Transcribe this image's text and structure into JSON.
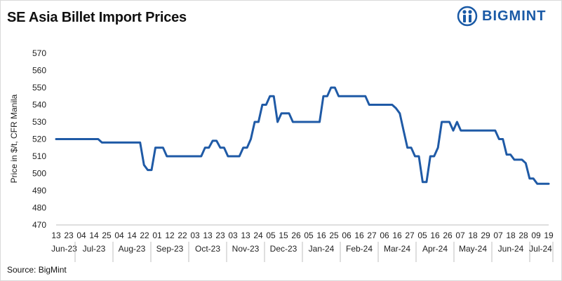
{
  "chart_data": {
    "type": "line",
    "title": "SE Asia Billet Import Prices",
    "ylabel": "Price in $/t, CFR Manila",
    "xlabel": "",
    "ylim": [
      470,
      570
    ],
    "yticks": [
      470,
      480,
      490,
      500,
      510,
      520,
      530,
      540,
      550,
      560,
      570
    ],
    "grid": false,
    "legend": "none",
    "line_color": "#1f5aa6",
    "day_labels": [
      "13",
      "23",
      "04",
      "14",
      "25",
      "04",
      "14",
      "22",
      "01",
      "12",
      "22",
      "03",
      "13",
      "23",
      "03",
      "13",
      "24",
      "05",
      "15",
      "26",
      "05",
      "16",
      "25",
      "06",
      "16",
      "27",
      "06",
      "16",
      "27",
      "05",
      "16",
      "26",
      "07",
      "18",
      "29",
      "07",
      "18",
      "28",
      "09",
      "19"
    ],
    "months": [
      {
        "label": "Jun-23",
        "from": 0,
        "to": 2
      },
      {
        "label": "Jul-23",
        "from": 2,
        "to": 5
      },
      {
        "label": "Aug-23",
        "from": 5,
        "to": 8
      },
      {
        "label": "Sep-23",
        "from": 8,
        "to": 11
      },
      {
        "label": "Oct-23",
        "from": 11,
        "to": 14
      },
      {
        "label": "Nov-23",
        "from": 14,
        "to": 17
      },
      {
        "label": "Dec-23",
        "from": 17,
        "to": 20
      },
      {
        "label": "Jan-24",
        "from": 20,
        "to": 23
      },
      {
        "label": "Feb-24",
        "from": 23,
        "to": 26
      },
      {
        "label": "Mar-24",
        "from": 26,
        "to": 29
      },
      {
        "label": "Apr-24",
        "from": 29,
        "to": 32
      },
      {
        "label": "May-24",
        "from": 32,
        "to": 35
      },
      {
        "label": "Jun-24",
        "from": 35,
        "to": 38
      },
      {
        "label": "Jul-24",
        "from": 38,
        "to": 40
      }
    ],
    "series": [
      {
        "values": [
          520,
          520,
          520,
          520,
          520,
          520,
          520,
          520,
          520,
          520,
          520,
          520,
          518,
          518,
          518,
          518,
          518,
          518,
          518,
          518,
          518,
          518,
          518,
          505,
          502,
          502,
          515,
          515,
          515,
          510,
          510,
          510,
          510,
          510,
          510,
          510,
          510,
          510,
          510,
          515,
          515,
          519,
          519,
          515,
          515,
          510,
          510,
          510,
          510,
          515,
          515,
          520,
          530,
          530,
          540,
          540,
          545,
          545,
          530,
          535,
          535,
          535,
          530,
          530,
          530,
          530,
          530,
          530,
          530,
          530,
          545,
          545,
          550,
          550,
          545,
          545,
          545,
          545,
          545,
          545,
          545,
          545,
          540,
          540,
          540,
          540,
          540,
          540,
          540,
          538,
          535,
          525,
          515,
          515,
          510,
          510,
          495,
          495,
          510,
          510,
          515,
          530,
          530,
          530,
          525,
          530,
          525,
          525,
          525,
          525,
          525,
          525,
          525,
          525,
          525,
          525,
          520,
          520,
          511,
          511,
          508,
          508,
          508,
          506,
          497,
          497,
          494,
          494,
          494,
          494
        ]
      }
    ]
  },
  "source_text": "Source: BigMint",
  "logo": {
    "text": "BIGMINT",
    "color": "#1a5aa6"
  }
}
